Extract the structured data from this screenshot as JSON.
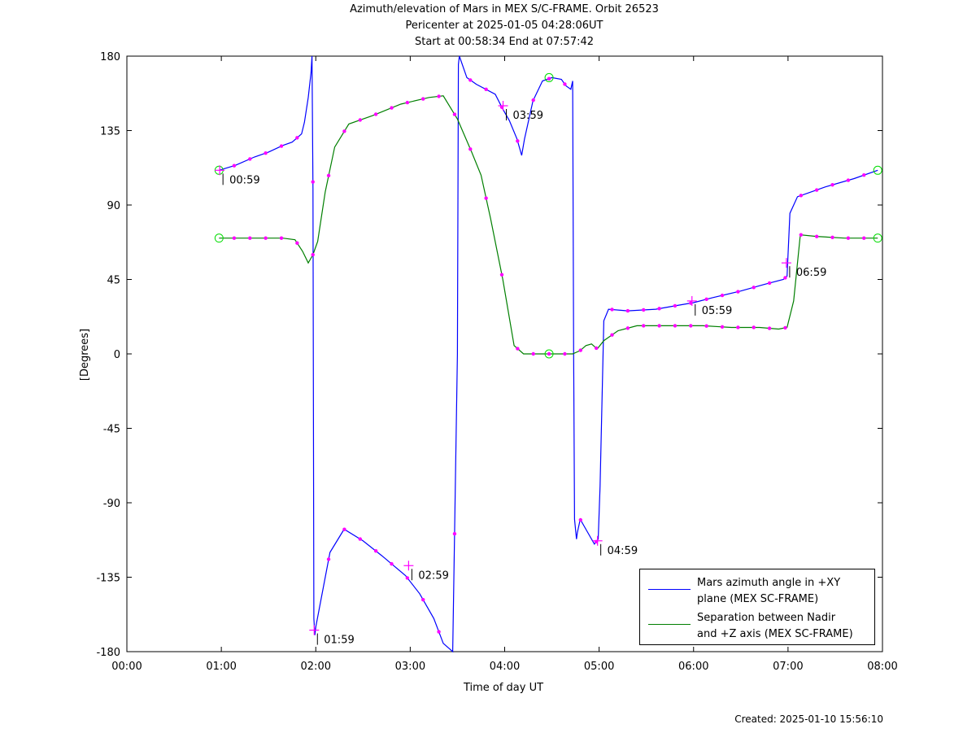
{
  "header": {
    "title_line1": "Azimuth/elevation of Mars in MEX S/C-FRAME.  Orbit 26523",
    "title_line2": "Pericenter at 2025-01-05 04:28:06UT",
    "title_line3": "Start at 00:58:34 End at 07:57:42"
  },
  "footer": {
    "created": "Created: 2025-01-10 15:56:10"
  },
  "legend": {
    "azimuth_line1": "Mars azimuth angle in +XY",
    "azimuth_line2": "plane (MEX SC-FRAME)",
    "separation_line1": "Separation between Nadir",
    "separation_line2": "and +Z axis (MEX SC-FRAME)"
  },
  "colors": {
    "azimuth": "#0000ff",
    "separation": "#007f00",
    "markers": "#ff00ff",
    "circle_markers": "#00dd00"
  },
  "chart_data": {
    "type": "line",
    "title": "Azimuth/elevation of Mars in MEX S/C-FRAME.  Orbit 26523",
    "xlabel": "Time of day UT",
    "ylabel": "[Degrees]",
    "xlim": [
      0,
      8
    ],
    "ylim": [
      -180,
      180
    ],
    "x_ticks": [
      "00:00",
      "01:00",
      "02:00",
      "03:00",
      "04:00",
      "05:00",
      "06:00",
      "07:00",
      "08:00"
    ],
    "y_ticks": [
      "180",
      "135",
      "90",
      "45",
      "0",
      "-45",
      "-90",
      "-135",
      "-180"
    ],
    "legend_position": "bottom-right",
    "grid": false,
    "series": [
      {
        "name": "Mars azimuth angle in +XY plane (MEX SC-FRAME)",
        "color": "#0000ff",
        "x": [
          0.976,
          1.15,
          1.35,
          1.5,
          1.65,
          1.75,
          1.85,
          1.88,
          1.92,
          1.95,
          1.96,
          1.97,
          1.98,
          1.99,
          2.0,
          2.05,
          2.15,
          2.3,
          2.5,
          2.7,
          2.95,
          3.1,
          3.25,
          3.35,
          3.45,
          3.5,
          3.51,
          3.52,
          3.6,
          3.7,
          3.9,
          3.98,
          4.05,
          4.13,
          4.18,
          4.21,
          4.3,
          4.4,
          4.5,
          4.6,
          4.65,
          4.7,
          4.72,
          4.73,
          4.74,
          4.76,
          4.77,
          4.8,
          4.85,
          4.95,
          4.99,
          5.01,
          5.03,
          5.05,
          5.1,
          5.3,
          5.6,
          5.8,
          6.0,
          6.2,
          6.5,
          6.75,
          6.95,
          6.99,
          7.02,
          7.1,
          7.4,
          7.7,
          7.95
        ],
        "y": [
          111,
          114,
          119,
          122,
          126,
          128,
          133,
          140,
          155,
          170,
          180,
          100,
          -160,
          -170,
          -165,
          -150,
          -120,
          -106,
          -113,
          -122,
          -134,
          -145,
          -160,
          -175,
          -180,
          0,
          175,
          180,
          167,
          163,
          157,
          148,
          141,
          130,
          120,
          130,
          153,
          165,
          167,
          166,
          162,
          160,
          165,
          0,
          -100,
          -112,
          -108,
          -100,
          -105,
          -115,
          -112,
          -80,
          -30,
          20,
          27,
          26,
          27,
          29,
          31,
          34,
          38,
          42,
          45,
          47,
          85,
          95,
          101,
          106,
          111
        ]
      },
      {
        "name": "Separation between Nadir and +Z axis (MEX SC-FRAME)",
        "color": "#007f00",
        "x": [
          0.976,
          1.2,
          1.4,
          1.65,
          1.78,
          1.86,
          1.92,
          1.97,
          2.02,
          2.1,
          2.2,
          2.35,
          2.6,
          2.9,
          3.2,
          3.35,
          3.5,
          3.65,
          3.75,
          3.85,
          3.98,
          4.1,
          4.2,
          4.35,
          4.5,
          4.62,
          4.72,
          4.8,
          4.86,
          4.92,
          4.98,
          5.05,
          5.2,
          5.4,
          5.6,
          5.8,
          6.1,
          6.4,
          6.7,
          6.9,
          6.99,
          7.06,
          7.13,
          7.3,
          7.6,
          7.95
        ],
        "y": [
          70,
          70,
          70,
          70,
          69,
          62,
          55,
          60,
          68,
          98,
          125,
          139,
          144,
          151,
          155,
          156,
          142,
          122,
          108,
          82,
          45,
          5,
          0,
          0,
          0,
          0,
          0,
          2,
          5,
          6,
          3,
          8,
          14,
          17,
          17,
          17,
          17,
          16,
          16,
          15,
          16,
          32,
          72,
          71,
          70,
          70
        ]
      }
    ],
    "time_labels": [
      {
        "x": 0.983,
        "y": 111,
        "label": "00:59"
      },
      {
        "x": 1.983,
        "y": -167,
        "label": "01:59"
      },
      {
        "x": 2.983,
        "y": -128,
        "label": "02:59"
      },
      {
        "x": 3.983,
        "y": 150,
        "label": "03:59"
      },
      {
        "x": 4.983,
        "y": -113,
        "label": "04:59"
      },
      {
        "x": 5.983,
        "y": 32,
        "label": "05:59"
      },
      {
        "x": 6.983,
        "y": 55,
        "label": "06:59"
      }
    ]
  }
}
